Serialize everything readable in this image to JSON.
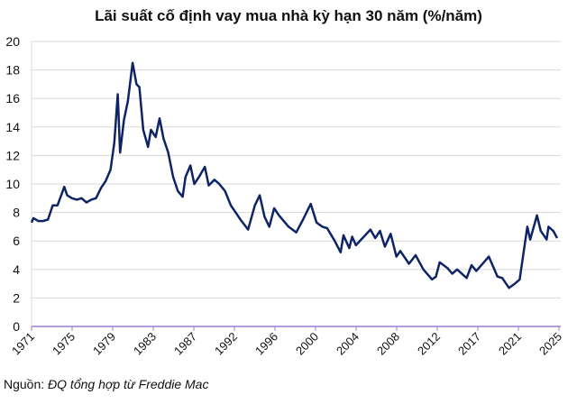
{
  "chart_data": {
    "type": "line",
    "title": "Lãi suất cố định vay mua nhà kỳ hạn 30 năm (%/năm)",
    "xlabel": "",
    "ylabel": "",
    "ylim": [
      0,
      20
    ],
    "yticks": [
      "0",
      "2",
      "4",
      "6",
      "8",
      "10",
      "12",
      "14",
      "16",
      "18",
      "20"
    ],
    "xticks": [
      "1971",
      "1975",
      "1979",
      "1983",
      "1987",
      "1992",
      "1996",
      "2000",
      "2004",
      "2008",
      "2012",
      "2017",
      "2021",
      "2025"
    ],
    "xlim": [
      1971.3,
      2025.9
    ],
    "grid": true,
    "legend": "none",
    "line_color": "#0f2466",
    "axis_color": "#9b7fd4",
    "series": [
      {
        "x": [
          1971.3,
          1971.5,
          1972,
          1972.5,
          1973,
          1973.5,
          1974,
          1974.7,
          1975,
          1975.5,
          1976,
          1976.5,
          1977,
          1977.5,
          1978,
          1978.5,
          1979,
          1979.5,
          1979.9,
          1980.25,
          1980.5,
          1980.9,
          1981.3,
          1981.8,
          1982.2,
          1982.5,
          1982.9,
          1983.4,
          1983.7,
          1984.2,
          1984.6,
          1985,
          1985.5,
          1986,
          1986.5,
          1987,
          1987.3,
          1987.8,
          1988.2,
          1988.7,
          1989.3,
          1989.7,
          1990.3,
          1990.8,
          1991.4,
          1992,
          1992.5,
          1993,
          1993.8,
          1994.5,
          1995,
          1995.5,
          1996,
          1996.5,
          1997,
          1998,
          1998.8,
          1999.5,
          2000.3,
          2000.9,
          2001.5,
          2002,
          2002.8,
          2003.4,
          2003.7,
          2004.3,
          2004.6,
          2005,
          2006.5,
          2007,
          2007.5,
          2008,
          2008.6,
          2009.2,
          2009.6,
          2010.5,
          2011.2,
          2012,
          2012.9,
          2013.3,
          2013.7,
          2014.5,
          2015,
          2015.5,
          2016.5,
          2017,
          2017.5,
          2018.8,
          2019.7,
          2020.2,
          2020.9,
          2021.5,
          2022,
          2022.8,
          2023.1,
          2023.8,
          2024.2,
          2024.8,
          2025,
          2025.5,
          2025.9
        ],
        "values": [
          7.3,
          7.6,
          7.4,
          7.4,
          7.5,
          8.5,
          8.5,
          9.8,
          9.2,
          9.0,
          8.9,
          9.0,
          8.7,
          8.9,
          9.0,
          9.7,
          10.2,
          11.0,
          12.9,
          16.3,
          12.2,
          14.5,
          15.8,
          18.5,
          17.0,
          16.8,
          13.8,
          12.6,
          13.8,
          13.3,
          14.6,
          13.2,
          12.2,
          10.5,
          9.5,
          9.1,
          10.5,
          11.3,
          10.0,
          10.5,
          11.2,
          9.9,
          10.3,
          10.0,
          9.5,
          8.5,
          8.0,
          7.5,
          6.8,
          8.5,
          9.2,
          7.7,
          7.0,
          8.3,
          7.8,
          7.0,
          6.6,
          7.5,
          8.6,
          7.3,
          7.0,
          6.9,
          6.0,
          5.2,
          6.4,
          5.5,
          6.3,
          5.7,
          6.8,
          6.2,
          6.7,
          5.6,
          6.5,
          4.9,
          5.3,
          4.4,
          5.0,
          4.0,
          3.3,
          3.5,
          4.5,
          4.1,
          3.7,
          4.0,
          3.4,
          4.3,
          3.9,
          4.9,
          3.5,
          3.4,
          2.7,
          3.0,
          3.3,
          7.0,
          6.1,
          7.8,
          6.7,
          6.1,
          7.0,
          6.7,
          6.2
        ]
      }
    ]
  },
  "source": {
    "label": "Nguồn:",
    "text": "ĐQ tổng hợp từ Freddie Mac"
  }
}
